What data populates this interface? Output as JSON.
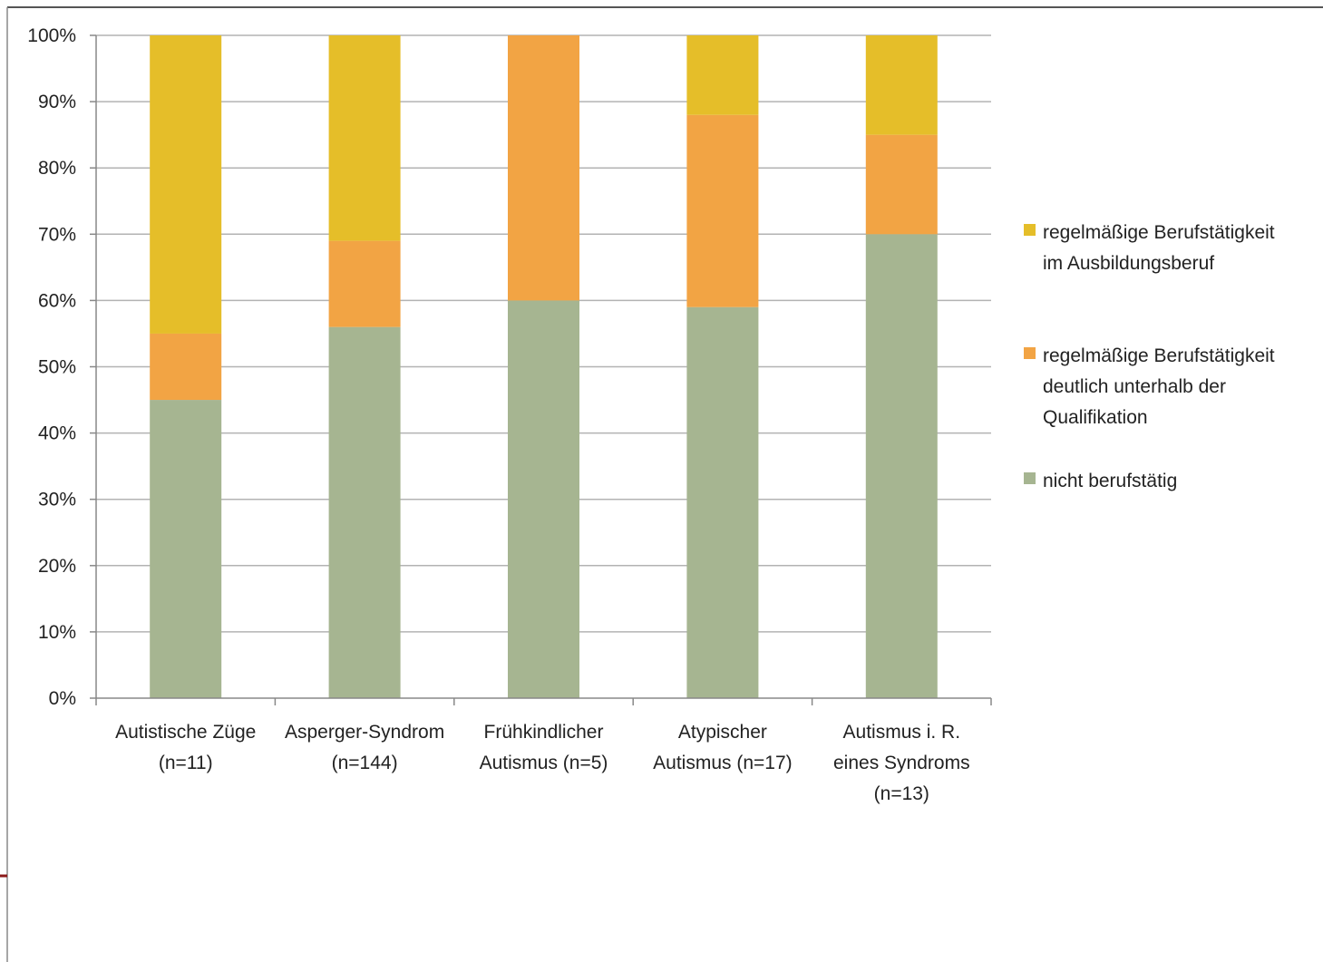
{
  "chart_data": {
    "type": "bar",
    "stacked": true,
    "percent_stacked": true,
    "title": "",
    "xlabel": "",
    "ylabel": "",
    "ylim": [
      0,
      100
    ],
    "y_ticks": [
      "0%",
      "10%",
      "20%",
      "30%",
      "40%",
      "50%",
      "60%",
      "70%",
      "80%",
      "90%",
      "100%"
    ],
    "grid": true,
    "legend_position": "right",
    "categories": [
      [
        "Autistische Züge",
        "(n=11)"
      ],
      [
        "Asperger-Syndrom",
        "(n=144)"
      ],
      [
        "Frühkindlicher",
        "Autismus (n=5)"
      ],
      [
        "Atypischer",
        "Autismus (n=17)"
      ],
      [
        "Autismus i. R.",
        "eines Syndroms",
        "(n=13)"
      ]
    ],
    "series": [
      {
        "name": [
          "nicht berufstätig"
        ],
        "color": "#a6b591",
        "values": [
          45,
          56,
          60,
          59,
          70
        ]
      },
      {
        "name": [
          "regelmäßige Berufstätigkeit",
          "deutlich unterhalb der",
          "Qualifikation"
        ],
        "color": "#f2a444",
        "values": [
          10,
          13,
          40,
          29,
          15
        ]
      },
      {
        "name": [
          "regelmäßige Berufstätigkeit",
          "im Ausbildungsberuf"
        ],
        "color": "#e5be29",
        "values": [
          45,
          31,
          0,
          12,
          15
        ]
      }
    ],
    "legend_order": [
      2,
      1,
      0
    ]
  }
}
